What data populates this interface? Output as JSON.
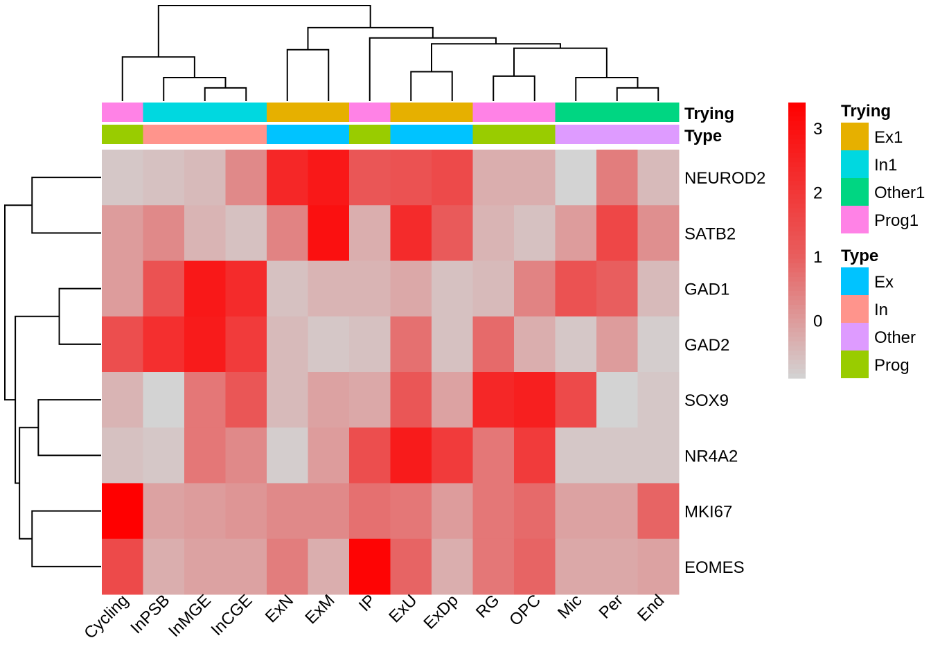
{
  "chart_data": {
    "type": "heatmap",
    "title": "",
    "columns": [
      "Cycling",
      "InPSB",
      "InMGE",
      "InCGE",
      "ExN",
      "ExM",
      "IP",
      "ExU",
      "ExDp",
      "RG",
      "OPC",
      "Mic",
      "Per",
      "End"
    ],
    "rows": [
      "NEUROD2",
      "SATB2",
      "GAD1",
      "GAD2",
      "SOX9",
      "NR4A2",
      "MKI67",
      "EOMES"
    ],
    "values": [
      [
        -0.7,
        -0.6,
        -0.5,
        0.3,
        2.4,
        2.8,
        1.2,
        1.3,
        1.5,
        -0.3,
        -0.3,
        -0.9,
        0.5,
        -0.5
      ],
      [
        0.0,
        0.3,
        -0.4,
        -0.6,
        0.4,
        3.0,
        -0.3,
        2.3,
        1.1,
        -0.4,
        -0.6,
        0.0,
        1.6,
        0.2
      ],
      [
        0.0,
        1.3,
        2.8,
        2.3,
        -0.6,
        -0.4,
        -0.4,
        -0.2,
        -0.6,
        -0.5,
        0.4,
        1.3,
        1.0,
        -0.5
      ],
      [
        1.4,
        2.2,
        2.7,
        1.9,
        -0.5,
        -0.7,
        -0.6,
        0.7,
        -0.6,
        0.8,
        -0.3,
        -0.7,
        0.0,
        -0.8
      ],
      [
        -0.4,
        -0.9,
        0.6,
        1.2,
        -0.5,
        -0.1,
        -0.2,
        1.2,
        -0.1,
        2.4,
        2.6,
        1.5,
        -0.9,
        -0.7
      ],
      [
        -0.6,
        -0.7,
        0.6,
        0.3,
        -0.8,
        0.0,
        1.4,
        2.7,
        1.9,
        0.6,
        1.9,
        -0.7,
        -0.7,
        -0.7
      ],
      [
        3.4,
        -0.1,
        0.0,
        0.1,
        0.3,
        0.3,
        0.7,
        0.6,
        0.0,
        0.6,
        0.8,
        -0.1,
        -0.1,
        0.9
      ],
      [
        1.5,
        -0.3,
        -0.1,
        -0.1,
        0.5,
        -0.3,
        3.3,
        0.9,
        -0.3,
        0.6,
        0.9,
        -0.2,
        -0.2,
        -0.1
      ]
    ],
    "color_scale": {
      "min": -0.9,
      "max": 3.4,
      "low_color": "#D3D3D3",
      "high_color": "#FF0000"
    },
    "colorbar_ticks": [
      "0",
      "1",
      "2",
      "3"
    ],
    "colorbar_tick_values": [
      0,
      1,
      2,
      3
    ],
    "annotations": [
      {
        "name": "Trying",
        "values": [
          "Prog1",
          "In1",
          "In1",
          "In1",
          "Ex1",
          "Ex1",
          "Prog1",
          "Ex1",
          "Ex1",
          "Prog1",
          "Prog1",
          "Other1",
          "Other1",
          "Other1"
        ],
        "legend": [
          {
            "label": "Ex1",
            "color": "#E6B000"
          },
          {
            "label": "In1",
            "color": "#00D8E0"
          },
          {
            "label": "Other1",
            "color": "#00D682"
          },
          {
            "label": "Prog1",
            "color": "#FF82E6"
          }
        ]
      },
      {
        "name": "Type",
        "values": [
          "Prog",
          "In",
          "In",
          "In",
          "Ex",
          "Ex",
          "Prog",
          "Ex",
          "Ex",
          "Prog",
          "Prog",
          "Other",
          "Other",
          "Other"
        ],
        "legend": [
          {
            "label": "Ex",
            "color": "#00C3FF"
          },
          {
            "label": "In",
            "color": "#FF948C"
          },
          {
            "label": "Other",
            "color": "#DE9BFF"
          },
          {
            "label": "Prog",
            "color": "#99CC00"
          }
        ]
      }
    ],
    "column_dendrogram": {
      "merges": [
        [
          3,
          4,
          0.9
        ],
        [
          2,
          "m0",
          1.6
        ],
        [
          1,
          "m1",
          3.0
        ],
        [
          5,
          6,
          3.5
        ],
        [
          8,
          9,
          2.0
        ],
        [
          10,
          11,
          1.7
        ],
        [
          13,
          14,
          0.9
        ],
        [
          12,
          "m6",
          1.6
        ],
        [
          "m5",
          "m7",
          3.6
        ],
        [
          "m4",
          "m8",
          3.9
        ],
        [
          7,
          "m9",
          4.3
        ],
        [
          "m3",
          "m10",
          5.0
        ],
        [
          "m2",
          "m11",
          6.5
        ]
      ]
    },
    "row_dendrogram": {
      "merges": [
        [
          1,
          2,
          3.3
        ],
        [
          3,
          4,
          2.0
        ],
        [
          5,
          6,
          3.0
        ],
        [
          7,
          8,
          3.3
        ],
        [
          "m2",
          "m3",
          3.9
        ],
        [
          "m1",
          "m4",
          4.1
        ],
        [
          "m0",
          "m5",
          4.6
        ]
      ]
    },
    "legend_position": "right",
    "grid": false
  }
}
